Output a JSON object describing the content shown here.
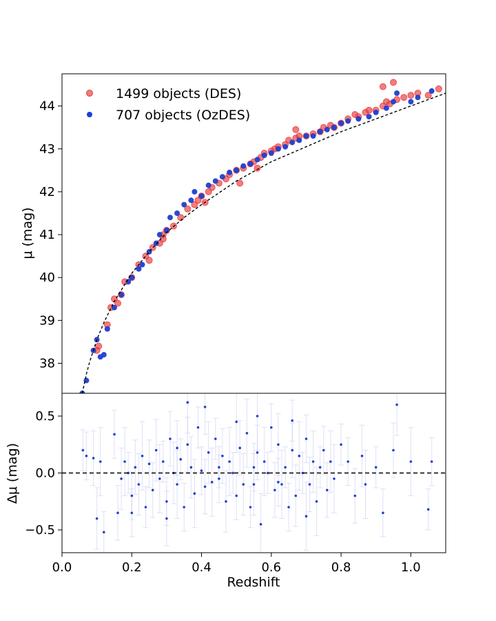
{
  "chart_data": [
    {
      "type": "scatter",
      "panel": "top",
      "xlabel": "",
      "ylabel": "μ (mag)",
      "xlim": [
        0.0,
        1.1
      ],
      "ylim": [
        37.3,
        44.75
      ],
      "yticks": [
        38,
        39,
        40,
        41,
        42,
        43,
        44
      ],
      "grid": false,
      "legend_position": "upper-left",
      "series": [
        {
          "name": "1499 objects (DES)",
          "color": "#e8383b",
          "marker": "circle",
          "x": [
            0.1,
            0.105,
            0.13,
            0.14,
            0.15,
            0.16,
            0.17,
            0.18,
            0.2,
            0.22,
            0.24,
            0.25,
            0.26,
            0.28,
            0.29,
            0.3,
            0.32,
            0.34,
            0.36,
            0.38,
            0.39,
            0.4,
            0.41,
            0.42,
            0.43,
            0.45,
            0.47,
            0.48,
            0.5,
            0.51,
            0.52,
            0.54,
            0.55,
            0.57,
            0.58,
            0.6,
            0.61,
            0.62,
            0.64,
            0.65,
            0.67,
            0.68,
            0.7,
            0.72,
            0.74,
            0.75,
            0.77,
            0.78,
            0.8,
            0.82,
            0.84,
            0.85,
            0.87,
            0.88,
            0.9,
            0.92,
            0.93,
            0.94,
            0.96,
            0.98,
            1.0,
            1.02,
            1.05,
            1.08,
            0.29,
            0.56,
            0.67,
            0.92,
            0.95
          ],
          "y": [
            38.3,
            38.4,
            38.9,
            39.3,
            39.5,
            39.4,
            39.6,
            39.9,
            40.0,
            40.3,
            40.5,
            40.4,
            40.7,
            40.8,
            40.9,
            41.1,
            41.2,
            41.4,
            41.6,
            41.7,
            41.8,
            41.9,
            41.75,
            42.0,
            42.1,
            42.2,
            42.3,
            42.4,
            42.5,
            42.2,
            42.55,
            42.65,
            42.7,
            42.8,
            42.9,
            42.95,
            43.0,
            43.05,
            43.1,
            43.2,
            43.25,
            43.3,
            43.3,
            43.35,
            43.4,
            43.5,
            43.55,
            43.5,
            43.6,
            43.7,
            43.8,
            43.75,
            43.85,
            43.9,
            43.9,
            44.0,
            44.1,
            44.05,
            44.15,
            44.2,
            44.25,
            44.3,
            44.25,
            44.4,
            41.0,
            42.55,
            43.45,
            44.45,
            44.55
          ]
        },
        {
          "name": "707 objects (OzDES)",
          "color": "#1f3fcf",
          "marker": "circle",
          "x": [
            0.058,
            0.07,
            0.09,
            0.1,
            0.11,
            0.12,
            0.13,
            0.15,
            0.17,
            0.19,
            0.2,
            0.22,
            0.23,
            0.25,
            0.27,
            0.28,
            0.3,
            0.31,
            0.33,
            0.35,
            0.37,
            0.38,
            0.4,
            0.42,
            0.44,
            0.46,
            0.48,
            0.5,
            0.52,
            0.54,
            0.56,
            0.58,
            0.6,
            0.62,
            0.64,
            0.66,
            0.68,
            0.7,
            0.72,
            0.74,
            0.76,
            0.78,
            0.8,
            0.82,
            0.85,
            0.88,
            0.9,
            0.93,
            0.95,
            0.96,
            1.0,
            1.02,
            1.06
          ],
          "y": [
            37.3,
            37.6,
            38.3,
            38.55,
            38.15,
            38.2,
            38.8,
            39.3,
            39.6,
            39.9,
            40.0,
            40.2,
            40.3,
            40.6,
            40.8,
            41.0,
            41.1,
            41.4,
            41.5,
            41.7,
            41.8,
            42.0,
            41.9,
            42.15,
            42.25,
            42.35,
            42.45,
            42.5,
            42.6,
            42.65,
            42.75,
            42.85,
            42.9,
            43.0,
            43.05,
            43.15,
            43.2,
            43.3,
            43.3,
            43.4,
            43.45,
            43.5,
            43.6,
            43.65,
            43.7,
            43.75,
            43.85,
            43.95,
            44.1,
            44.3,
            44.1,
            44.2,
            44.35
          ]
        }
      ],
      "model_curve": {
        "style": "black dashed",
        "x": [
          0.058,
          0.07,
          0.08,
          0.1,
          0.12,
          0.15,
          0.2,
          0.25,
          0.3,
          0.35,
          0.4,
          0.5,
          0.6,
          0.7,
          0.8,
          0.9,
          1.0,
          1.1
        ],
        "y": [
          37.3,
          37.75,
          38.05,
          38.55,
          38.95,
          39.45,
          40.1,
          40.6,
          41.05,
          41.4,
          41.7,
          42.25,
          42.7,
          43.05,
          43.4,
          43.7,
          44.0,
          44.3
        ]
      }
    },
    {
      "type": "scatter",
      "panel": "bottom",
      "xlabel": "Redshift",
      "ylabel": "Δμ (mag)",
      "xlim": [
        0.0,
        1.1
      ],
      "ylim": [
        -0.7,
        0.7
      ],
      "xticks": [
        0.0,
        0.2,
        0.4,
        0.6,
        0.8,
        1.0
      ],
      "xtick_labels": [
        "0.0",
        "0.2",
        "0.4",
        "0.6",
        "0.8",
        "1.0"
      ],
      "yticks": [
        0.5,
        0.0,
        -0.5
      ],
      "ytick_labels": [
        "0.5",
        "0.0",
        "−0.5"
      ],
      "reference_line": {
        "y": 0.0,
        "style": "black dashed"
      },
      "series": [
        {
          "name": "",
          "color": "#1f3fcf",
          "errorbar_color": "#c9c9f5",
          "x": [
            0.06,
            0.07,
            0.09,
            0.1,
            0.11,
            0.12,
            0.15,
            0.16,
            0.17,
            0.18,
            0.19,
            0.2,
            0.21,
            0.22,
            0.23,
            0.24,
            0.25,
            0.26,
            0.27,
            0.28,
            0.29,
            0.3,
            0.31,
            0.32,
            0.33,
            0.34,
            0.35,
            0.36,
            0.37,
            0.38,
            0.39,
            0.4,
            0.41,
            0.42,
            0.43,
            0.44,
            0.45,
            0.46,
            0.47,
            0.48,
            0.49,
            0.5,
            0.51,
            0.52,
            0.53,
            0.54,
            0.55,
            0.56,
            0.57,
            0.58,
            0.59,
            0.6,
            0.61,
            0.62,
            0.63,
            0.64,
            0.65,
            0.66,
            0.67,
            0.68,
            0.69,
            0.7,
            0.71,
            0.72,
            0.73,
            0.74,
            0.75,
            0.76,
            0.77,
            0.78,
            0.8,
            0.82,
            0.84,
            0.86,
            0.87,
            0.9,
            0.92,
            0.95,
            0.96,
            1.0,
            1.05,
            1.06,
            0.41,
            0.36,
            0.56,
            0.66,
            0.2,
            0.3,
            0.5,
            0.7,
            0.45,
            0.62,
            0.33,
            0.55
          ],
          "y": [
            0.2,
            0.15,
            0.13,
            -0.4,
            0.1,
            -0.52,
            0.34,
            -0.35,
            -0.05,
            0.1,
            0.0,
            -0.2,
            0.05,
            -0.1,
            0.15,
            -0.3,
            0.08,
            -0.15,
            0.2,
            -0.05,
            0.1,
            -0.25,
            0.3,
            0.0,
            -0.1,
            0.12,
            -0.3,
            0.25,
            0.05,
            -0.18,
            0.4,
            0.02,
            -0.12,
            0.18,
            -0.08,
            0.3,
            -0.05,
            0.15,
            -0.25,
            0.1,
            0.0,
            -0.2,
            0.22,
            -0.1,
            0.35,
            -0.3,
            0.05,
            0.18,
            -0.45,
            0.1,
            0.0,
            0.4,
            -0.15,
            0.25,
            -0.1,
            0.05,
            -0.3,
            0.2,
            -0.2,
            0.15,
            0.0,
            0.3,
            -0.1,
            0.1,
            -0.25,
            0.05,
            0.2,
            -0.15,
            0.1,
            -0.05,
            0.25,
            0.1,
            -0.2,
            0.15,
            -0.1,
            0.05,
            -0.35,
            0.2,
            0.6,
            0.1,
            -0.32,
            0.1,
            0.58,
            0.62,
            0.5,
            0.46,
            -0.35,
            -0.4,
            0.45,
            -0.38,
            0.05,
            -0.08,
            0.22,
            -0.1
          ]
        }
      ]
    }
  ]
}
